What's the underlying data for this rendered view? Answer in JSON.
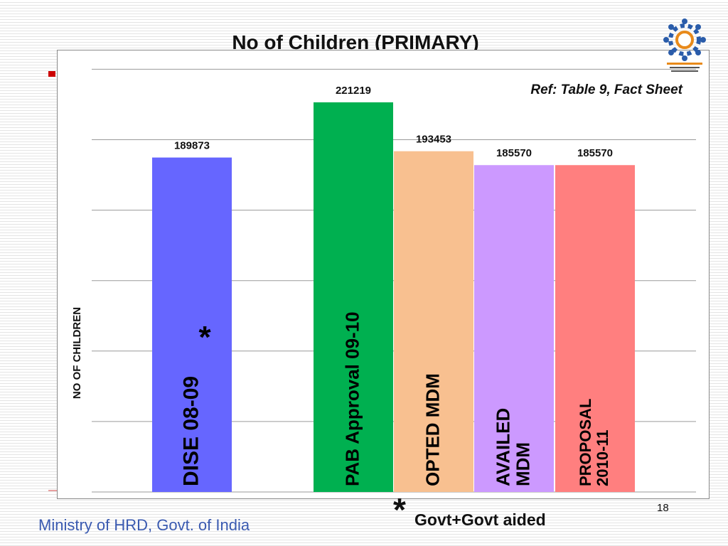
{
  "slide": {
    "title": "No of Children (PRIMARY)",
    "reference": "Ref: Table 9, Fact Sheet",
    "footer": "Ministry of HRD, Govt. of India",
    "page_number": "18",
    "footnote_mark": "*",
    "footnote_text": "Govt+Govt aided",
    "logo_icon": "mid-day-meal-scheme-logo"
  },
  "chart_data": {
    "type": "bar",
    "title": "",
    "ylabel": "NO OF CHILDREN",
    "xlabel": "",
    "ylim": [
      0,
      245000
    ],
    "gridlines": true,
    "categories": [
      "DISE 08-09",
      "PAB Approval  09-10",
      "OPTED  MDM",
      "AVAILED MDM",
      "PROPOSAL 2010-11"
    ],
    "values": [
      189873,
      221219,
      193453,
      185570,
      185570
    ],
    "data_labels": [
      "189873",
      "221219",
      "193453",
      "185570",
      "185570"
    ],
    "bar_text": [
      [
        "DISE 08-09"
      ],
      [
        "PAB Approval  09-10"
      ],
      [
        "OPTED  MDM"
      ],
      [
        "AVAILED",
        "MDM"
      ],
      [
        "PROPOSAL",
        "2010-11"
      ]
    ],
    "colors": [
      "#6666ff",
      "#00b050",
      "#f8c090",
      "#cc99ff",
      "#ff7f7f"
    ],
    "annotation": "*"
  }
}
